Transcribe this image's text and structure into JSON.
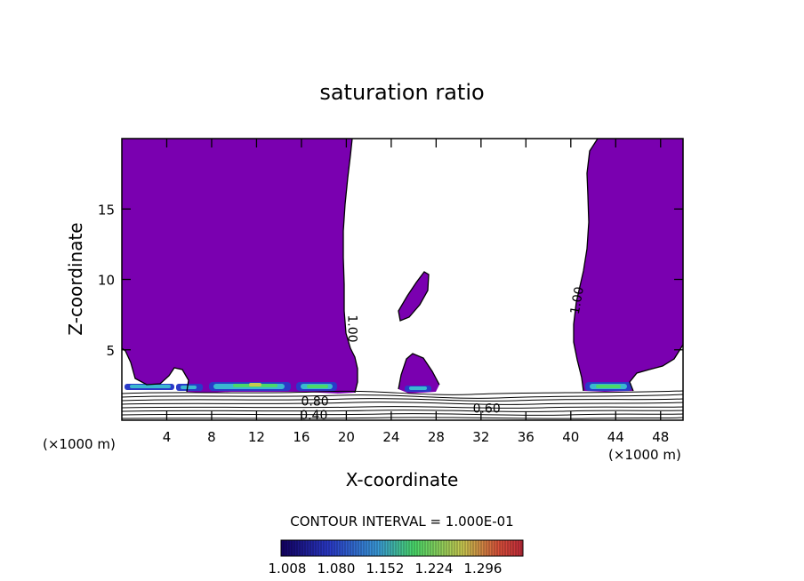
{
  "chart_data": {
    "type": "contour",
    "title": "saturation ratio",
    "xlabel": "X-coordinate",
    "ylabel": "Z-coordinate",
    "x_units_left": "(×1000 m)",
    "x_units_right": "(×1000 m)",
    "xlim": [
      0,
      50
    ],
    "ylim": [
      0,
      20
    ],
    "x_ticks": [
      4,
      8,
      12,
      16,
      20,
      24,
      28,
      32,
      36,
      40,
      44,
      48
    ],
    "y_ticks": [
      5,
      10,
      15
    ],
    "contour_interval_text": "CONTOUR INTERVAL = 1.000E-01",
    "contour_labels": [
      {
        "text": "1.00",
        "x": 20.5,
        "z": 6.5,
        "rotation": 90
      },
      {
        "text": "1.00",
        "x": 40.6,
        "z": 8.5,
        "rotation": -80
      },
      {
        "text": "0.80",
        "x": 17.2,
        "z": 1.3,
        "rotation": 0
      },
      {
        "text": "0.40",
        "x": 17.1,
        "z": 0.3,
        "rotation": 0
      },
      {
        "text": "0.60",
        "x": 32.5,
        "z": 0.8,
        "rotation": 0
      }
    ],
    "colorbar": {
      "min": 1.008,
      "max": 1.34,
      "tick_labels": [
        "1.008",
        "1.080",
        "1.152",
        "1.224",
        "1.296"
      ]
    },
    "fill_color": "#7a00b0",
    "fill_regions": [
      {
        "name": "left-plume",
        "min_value": 1.0
      },
      {
        "name": "right-plume",
        "min_value": 1.0
      },
      {
        "name": "upper-small-cloud",
        "min_value": 1.0
      },
      {
        "name": "lower-small-cloud",
        "min_value": 1.0
      }
    ]
  }
}
